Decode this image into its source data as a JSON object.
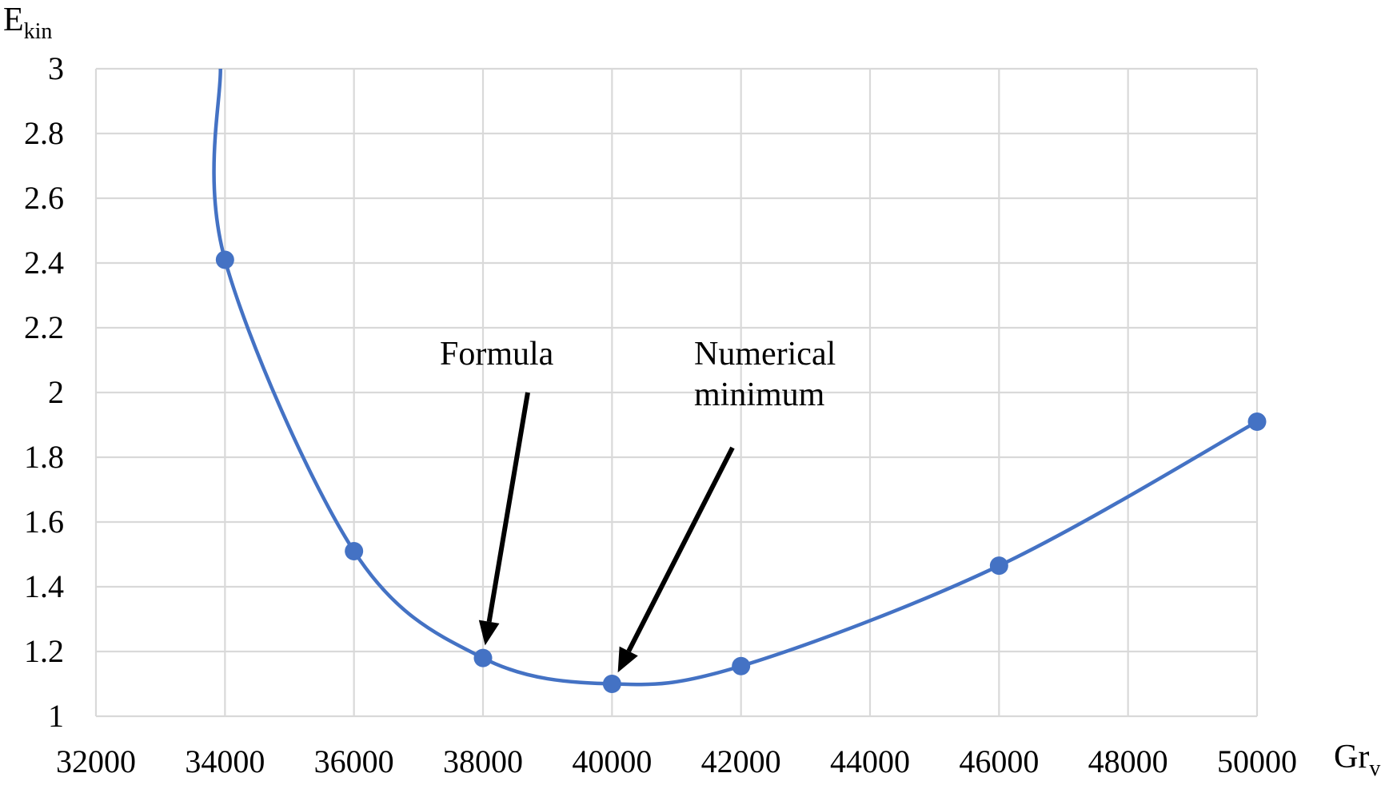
{
  "chart_data": {
    "type": "line",
    "title": "",
    "xlabel": "Gr",
    "xlabel_sub": "v",
    "ylabel": "E",
    "ylabel_sub": "kin",
    "xlim": [
      32000,
      50000
    ],
    "ylim": [
      1,
      3
    ],
    "x_ticks": [
      "32000",
      "34000",
      "36000",
      "38000",
      "40000",
      "42000",
      "44000",
      "46000",
      "48000",
      "50000"
    ],
    "y_ticks": [
      "1",
      "1.2",
      "1.4",
      "1.6",
      "1.8",
      "2",
      "2.2",
      "2.4",
      "2.6",
      "2.8",
      "3"
    ],
    "grid": true,
    "series": [
      {
        "name": "Ekin",
        "color": "#4472c4",
        "x": [
          34000,
          36000,
          38000,
          40000,
          42000,
          46000,
          50000
        ],
        "y": [
          2.41,
          1.51,
          1.18,
          1.1,
          1.155,
          1.465,
          1.91
        ]
      }
    ],
    "curve_top": {
      "x": 33930,
      "y": 3.0
    },
    "annotations": [
      {
        "text": [
          "Formula"
        ],
        "target_x": 38000,
        "target_y": 1.18
      },
      {
        "text": [
          "Numerical",
          "minimum"
        ],
        "target_x": 40000,
        "target_y": 1.1
      }
    ]
  }
}
